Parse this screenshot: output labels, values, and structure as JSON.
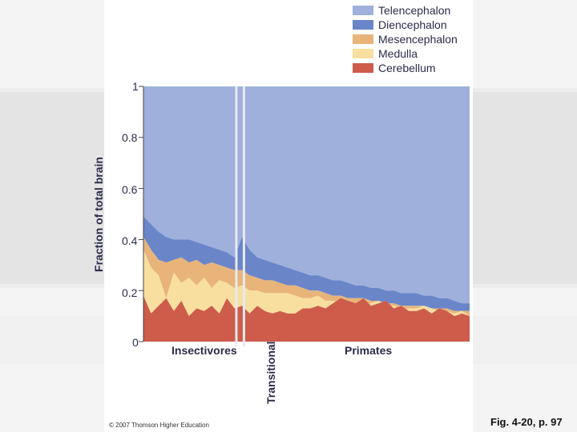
{
  "figure_label": "Fig. 4-20, p. 97",
  "credit": "© 2007 Thomson Higher Education",
  "colors": {
    "telencephalon": "#9fb0dc",
    "diencephalon": "#6a86c9",
    "mesencephalon": "#e8b47a",
    "medulla": "#f8dfa0",
    "cerebellum": "#cd5c4a",
    "divider": "#e9e9ef"
  },
  "chart_data": {
    "type": "area",
    "stacked": true,
    "title": "",
    "xlabel": "",
    "ylabel": "Fraction of total brain",
    "ylim": [
      0,
      1
    ],
    "yticks": [
      "0",
      "0.2",
      "0.4",
      "0.6",
      "0.8",
      "1"
    ],
    "groups": [
      {
        "name": "Insectivores",
        "start": 0,
        "end": 24
      },
      {
        "name": "Transitional",
        "start": 25,
        "end": 26
      },
      {
        "name": "Primates",
        "start": 27,
        "end": 86
      }
    ],
    "legend": [
      "Telencephalon",
      "Diencephalon",
      "Mesencephalon",
      "Medulla",
      "Cerebellum"
    ],
    "x_count": 87,
    "boundaries": {
      "cerebellum_top": [
        [
          0,
          0.18
        ],
        [
          2,
          0.11
        ],
        [
          4,
          0.14
        ],
        [
          6,
          0.17
        ],
        [
          8,
          0.12
        ],
        [
          10,
          0.16
        ],
        [
          12,
          0.1
        ],
        [
          14,
          0.13
        ],
        [
          16,
          0.12
        ],
        [
          18,
          0.14
        ],
        [
          20,
          0.11
        ],
        [
          22,
          0.17
        ],
        [
          24,
          0.13
        ],
        [
          26,
          0.14
        ],
        [
          28,
          0.11
        ],
        [
          30,
          0.14
        ],
        [
          32,
          0.12
        ],
        [
          34,
          0.11
        ],
        [
          36,
          0.12
        ],
        [
          38,
          0.11
        ],
        [
          40,
          0.11
        ],
        [
          42,
          0.13
        ],
        [
          44,
          0.13
        ],
        [
          46,
          0.14
        ],
        [
          48,
          0.13
        ],
        [
          50,
          0.15
        ],
        [
          52,
          0.17
        ],
        [
          54,
          0.16
        ],
        [
          56,
          0.15
        ],
        [
          58,
          0.17
        ],
        [
          60,
          0.14
        ],
        [
          62,
          0.15
        ],
        [
          64,
          0.16
        ],
        [
          66,
          0.13
        ],
        [
          68,
          0.14
        ],
        [
          70,
          0.12
        ],
        [
          72,
          0.12
        ],
        [
          74,
          0.13
        ],
        [
          76,
          0.11
        ],
        [
          78,
          0.13
        ],
        [
          80,
          0.12
        ],
        [
          82,
          0.1
        ],
        [
          84,
          0.11
        ],
        [
          86,
          0.1
        ]
      ],
      "medulla_top": [
        [
          0,
          0.36
        ],
        [
          2,
          0.29
        ],
        [
          4,
          0.26
        ],
        [
          6,
          0.17
        ],
        [
          8,
          0.27
        ],
        [
          10,
          0.23
        ],
        [
          12,
          0.25
        ],
        [
          14,
          0.22
        ],
        [
          16,
          0.25
        ],
        [
          18,
          0.21
        ],
        [
          20,
          0.24
        ],
        [
          22,
          0.23
        ],
        [
          24,
          0.21
        ],
        [
          26,
          0.22
        ],
        [
          28,
          0.2
        ],
        [
          30,
          0.2
        ],
        [
          32,
          0.19
        ],
        [
          34,
          0.19
        ],
        [
          36,
          0.19
        ],
        [
          38,
          0.19
        ],
        [
          40,
          0.18
        ],
        [
          42,
          0.17
        ],
        [
          44,
          0.17
        ],
        [
          46,
          0.18
        ],
        [
          48,
          0.16
        ],
        [
          50,
          0.16
        ],
        [
          52,
          0.15
        ],
        [
          54,
          0.15
        ],
        [
          56,
          0.15
        ],
        [
          58,
          0.14
        ],
        [
          60,
          0.15
        ],
        [
          62,
          0.16
        ],
        [
          64,
          0.14
        ],
        [
          66,
          0.14
        ],
        [
          68,
          0.13
        ],
        [
          70,
          0.13
        ],
        [
          72,
          0.13
        ],
        [
          74,
          0.14
        ],
        [
          76,
          0.13
        ],
        [
          78,
          0.12
        ],
        [
          80,
          0.12
        ],
        [
          82,
          0.11
        ],
        [
          84,
          0.12
        ],
        [
          86,
          0.1
        ]
      ],
      "mesencephalon_top": [
        [
          0,
          0.41
        ],
        [
          2,
          0.36
        ],
        [
          4,
          0.32
        ],
        [
          6,
          0.31
        ],
        [
          8,
          0.32
        ],
        [
          10,
          0.33
        ],
        [
          12,
          0.31
        ],
        [
          14,
          0.32
        ],
        [
          16,
          0.3
        ],
        [
          18,
          0.31
        ],
        [
          20,
          0.3
        ],
        [
          22,
          0.29
        ],
        [
          24,
          0.28
        ],
        [
          26,
          0.28
        ],
        [
          28,
          0.26
        ],
        [
          30,
          0.25
        ],
        [
          32,
          0.24
        ],
        [
          34,
          0.24
        ],
        [
          36,
          0.23
        ],
        [
          38,
          0.22
        ],
        [
          40,
          0.22
        ],
        [
          42,
          0.21
        ],
        [
          44,
          0.2
        ],
        [
          46,
          0.2
        ],
        [
          48,
          0.19
        ],
        [
          50,
          0.18
        ],
        [
          52,
          0.18
        ],
        [
          54,
          0.17
        ],
        [
          56,
          0.17
        ],
        [
          58,
          0.17
        ],
        [
          60,
          0.16
        ],
        [
          62,
          0.16
        ],
        [
          64,
          0.15
        ],
        [
          66,
          0.15
        ],
        [
          68,
          0.14
        ],
        [
          70,
          0.14
        ],
        [
          72,
          0.14
        ],
        [
          74,
          0.14
        ],
        [
          76,
          0.13
        ],
        [
          78,
          0.13
        ],
        [
          80,
          0.13
        ],
        [
          82,
          0.12
        ],
        [
          84,
          0.12
        ],
        [
          86,
          0.12
        ]
      ],
      "diencephalon_top": [
        [
          0,
          0.49
        ],
        [
          2,
          0.46
        ],
        [
          4,
          0.43
        ],
        [
          6,
          0.41
        ],
        [
          8,
          0.4
        ],
        [
          10,
          0.4
        ],
        [
          12,
          0.4
        ],
        [
          14,
          0.39
        ],
        [
          16,
          0.38
        ],
        [
          18,
          0.37
        ],
        [
          20,
          0.36
        ],
        [
          22,
          0.35
        ],
        [
          24,
          0.33
        ],
        [
          26,
          0.41
        ],
        [
          28,
          0.36
        ],
        [
          30,
          0.33
        ],
        [
          32,
          0.32
        ],
        [
          34,
          0.31
        ],
        [
          36,
          0.3
        ],
        [
          38,
          0.29
        ],
        [
          40,
          0.28
        ],
        [
          42,
          0.27
        ],
        [
          44,
          0.26
        ],
        [
          46,
          0.26
        ],
        [
          48,
          0.25
        ],
        [
          50,
          0.24
        ],
        [
          52,
          0.24
        ],
        [
          54,
          0.23
        ],
        [
          56,
          0.22
        ],
        [
          58,
          0.22
        ],
        [
          60,
          0.21
        ],
        [
          62,
          0.21
        ],
        [
          64,
          0.2
        ],
        [
          66,
          0.2
        ],
        [
          68,
          0.19
        ],
        [
          70,
          0.19
        ],
        [
          72,
          0.19
        ],
        [
          74,
          0.18
        ],
        [
          76,
          0.18
        ],
        [
          78,
          0.17
        ],
        [
          80,
          0.17
        ],
        [
          82,
          0.16
        ],
        [
          84,
          0.15
        ],
        [
          86,
          0.15
        ]
      ],
      "telencephalon_top": [
        [
          0,
          1.0
        ],
        [
          86,
          1.0
        ]
      ]
    }
  }
}
